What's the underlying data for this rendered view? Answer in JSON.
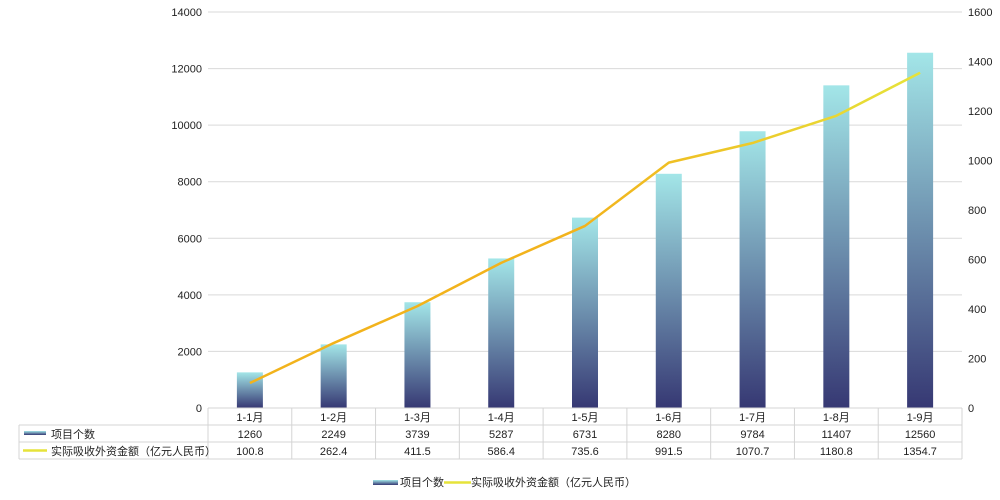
{
  "chart_data": {
    "type": "bar+line",
    "categories": [
      "1-1月",
      "1-2月",
      "1-3月",
      "1-4月",
      "1-5月",
      "1-6月",
      "1-7月",
      "1-8月",
      "1-9月"
    ],
    "series": [
      {
        "name": "项目个数",
        "type": "bar",
        "axis": "left",
        "values": [
          1260,
          2249,
          3739,
          5287,
          6731,
          8280,
          9784,
          11407,
          12560
        ]
      },
      {
        "name": "实际吸收外资金额（亿元人民币）",
        "type": "line",
        "axis": "right",
        "values": [
          100.8,
          262.4,
          411.5,
          586.4,
          735.6,
          991.5,
          1070.7,
          1180.8,
          1354.7
        ]
      }
    ],
    "y_left": {
      "min": 0,
      "max": 14000,
      "ticks": [
        "0",
        "2000",
        "4000",
        "6000",
        "8000",
        "10000",
        "12000",
        "14000"
      ]
    },
    "y_right": {
      "min": 0,
      "max": 1600,
      "ticks": [
        "0",
        "200",
        "400",
        "600",
        "800",
        "1000",
        "1200",
        "1400",
        "1600"
      ]
    },
    "grid": true,
    "data_table": true,
    "legend": "bottom",
    "colors": {
      "bar_top": "#a3e6e8",
      "bar_bottom": "#363873",
      "line_start": "#f2b31c",
      "line_end": "#e6e33a",
      "grid": "#d9d9d9"
    }
  }
}
